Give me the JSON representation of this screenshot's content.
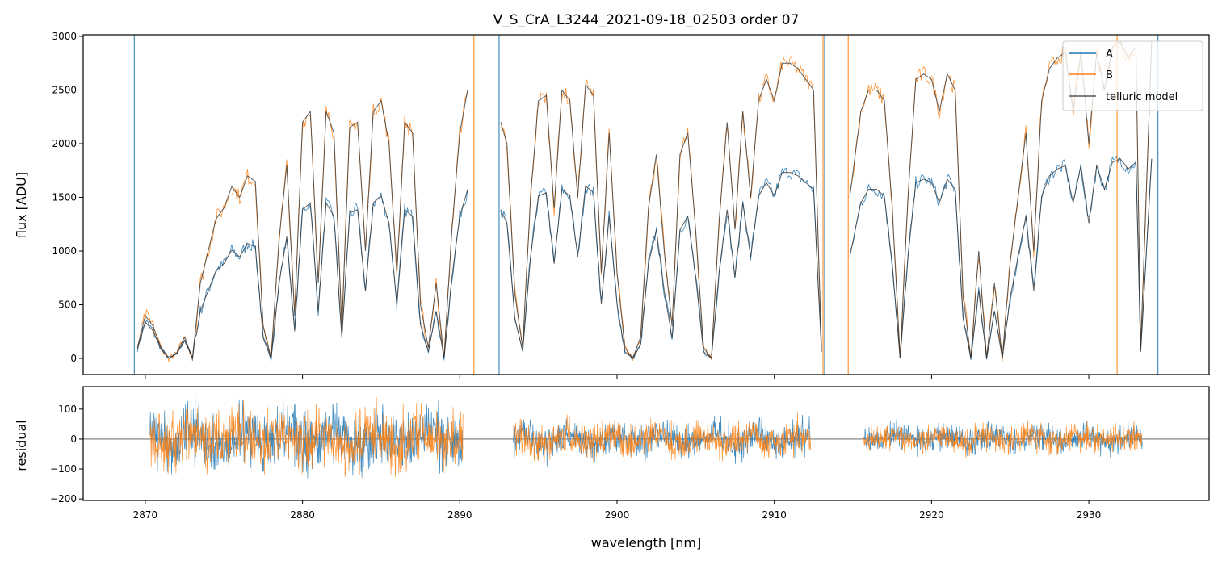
{
  "chart_data": {
    "type": "line",
    "title": "V_S_CrA_L3244_2021-09-18_02503  order 07",
    "xlabel": "wavelength [nm]",
    "top_panel": {
      "ylabel": "flux [ADU]",
      "xlim": [
        2866.05,
        2937.65
      ],
      "ylim": [
        -150,
        3015
      ],
      "xticks": [
        2870,
        2880,
        2890,
        2900,
        2910,
        2920,
        2930
      ],
      "yticks": [
        0,
        500,
        1000,
        1500,
        2000,
        2500,
        3000
      ],
      "legend": {
        "position": "top-right",
        "entries": [
          "A",
          "B",
          "telluric model"
        ]
      },
      "colors": {
        "A": "#1f77b4",
        "B": "#ff7f0e",
        "model": "#333333"
      },
      "x": [
        2869.5,
        2870,
        2870.5,
        2871,
        2871.5,
        2872,
        2872.5,
        2873,
        2873.5,
        2874,
        2874.5,
        2875,
        2875.5,
        2876,
        2876.5,
        2877,
        2877.5,
        2878,
        2878.5,
        2879,
        2879.5,
        2880,
        2880.5,
        2881,
        2881.5,
        2882,
        2882.5,
        2883,
        2883.5,
        2884,
        2884.5,
        2885,
        2885.5,
        2886,
        2886.5,
        2887,
        2887.5,
        2888,
        2888.5,
        2889,
        2889.5,
        2890,
        2890.5,
        null,
        2892.6,
        2893,
        2893.5,
        2894,
        2894.5,
        2895,
        2895.5,
        2896,
        2896.5,
        2897,
        2897.5,
        2898,
        2898.5,
        2899,
        2899.5,
        2900,
        2900.5,
        2901,
        2901.5,
        2902,
        2902.5,
        2903,
        2903.5,
        2904,
        2904.5,
        2905,
        2905.5,
        2906,
        2906.5,
        2907,
        2907.5,
        2908,
        2908.5,
        2909,
        2909.5,
        2910,
        2910.5,
        2911,
        2911.5,
        2912,
        2912.5,
        2913,
        null,
        2914.8,
        2915.5,
        2916,
        2916.5,
        2917,
        2917.5,
        2918,
        2918.5,
        2919,
        2919.5,
        2920,
        2920.5,
        2921,
        2921.5,
        2922,
        2922.5,
        2923,
        2923.5,
        2924,
        2924.5,
        2925,
        2925.5,
        2926,
        2926.5,
        2927,
        2927.5,
        2928,
        2928.5,
        2929,
        2929.5,
        2930,
        2930.5,
        2931,
        2931.5,
        2932,
        2932.5,
        2933,
        2933.3,
        2934
      ],
      "B": [
        100,
        400,
        300,
        100,
        0,
        50,
        200,
        0,
        700,
        1000,
        1300,
        1400,
        1600,
        1500,
        1700,
        1650,
        300,
        0,
        1100,
        1800,
        400,
        2200,
        2300,
        700,
        2300,
        2100,
        300,
        2150,
        2200,
        1000,
        2300,
        2400,
        2000,
        800,
        2200,
        2100,
        500,
        100,
        700,
        0,
        1200,
        2100,
        2500,
        null,
        2200,
        2000,
        600,
        100,
        1500,
        2400,
        2450,
        1400,
        2500,
        2400,
        1500,
        2550,
        2450,
        800,
        2100,
        800,
        100,
        0,
        200,
        1400,
        1900,
        1000,
        300,
        1900,
        2100,
        1200,
        100,
        0,
        1300,
        2200,
        1200,
        2300,
        1500,
        2400,
        2600,
        2400,
        2750,
        2750,
        2700,
        2600,
        2500,
        100,
        null,
        1500,
        2300,
        2500,
        2500,
        2400,
        1400,
        0,
        1500,
        2600,
        2650,
        2600,
        2300,
        2650,
        2500,
        600,
        0,
        1000,
        0,
        700,
        0,
        900,
        1500,
        2100,
        1000,
        2400,
        2700,
        2800,
        2850,
        2300,
        2850,
        2000,
        2850,
        2500,
        2900,
        2950,
        2800,
        2900,
        100,
        2950
      ],
      "A_ratio_segments": [
        {
          "from": 2869,
          "to": 2873.2,
          "ratio": 0.85
        },
        {
          "from": 2873.2,
          "to": 2935,
          "ratio": 0.63
        }
      ],
      "spikes": [
        {
          "x": 2869.3,
          "series": "A"
        },
        {
          "x": 2890.9,
          "series": "B"
        },
        {
          "x": 2892.5,
          "series": "A"
        },
        {
          "x": 2913.2,
          "series": "A"
        },
        {
          "x": 2913.1,
          "series": "B"
        },
        {
          "x": 2914.7,
          "series": "B"
        },
        {
          "x": 2931.8,
          "series": "B"
        },
        {
          "x": 2934.4,
          "series": "A"
        }
      ]
    },
    "bottom_panel": {
      "ylabel": "residual",
      "ylim": [
        -205,
        175
      ],
      "yticks": [
        -200,
        -100,
        0,
        100
      ],
      "segments": [
        {
          "from": 2870.3,
          "to": 2890.2,
          "rms": 60
        },
        {
          "from": 2893.4,
          "to": 2912.3,
          "rms": 35
        },
        {
          "from": 2915.7,
          "to": 2933.4,
          "rms": 28
        }
      ]
    }
  }
}
